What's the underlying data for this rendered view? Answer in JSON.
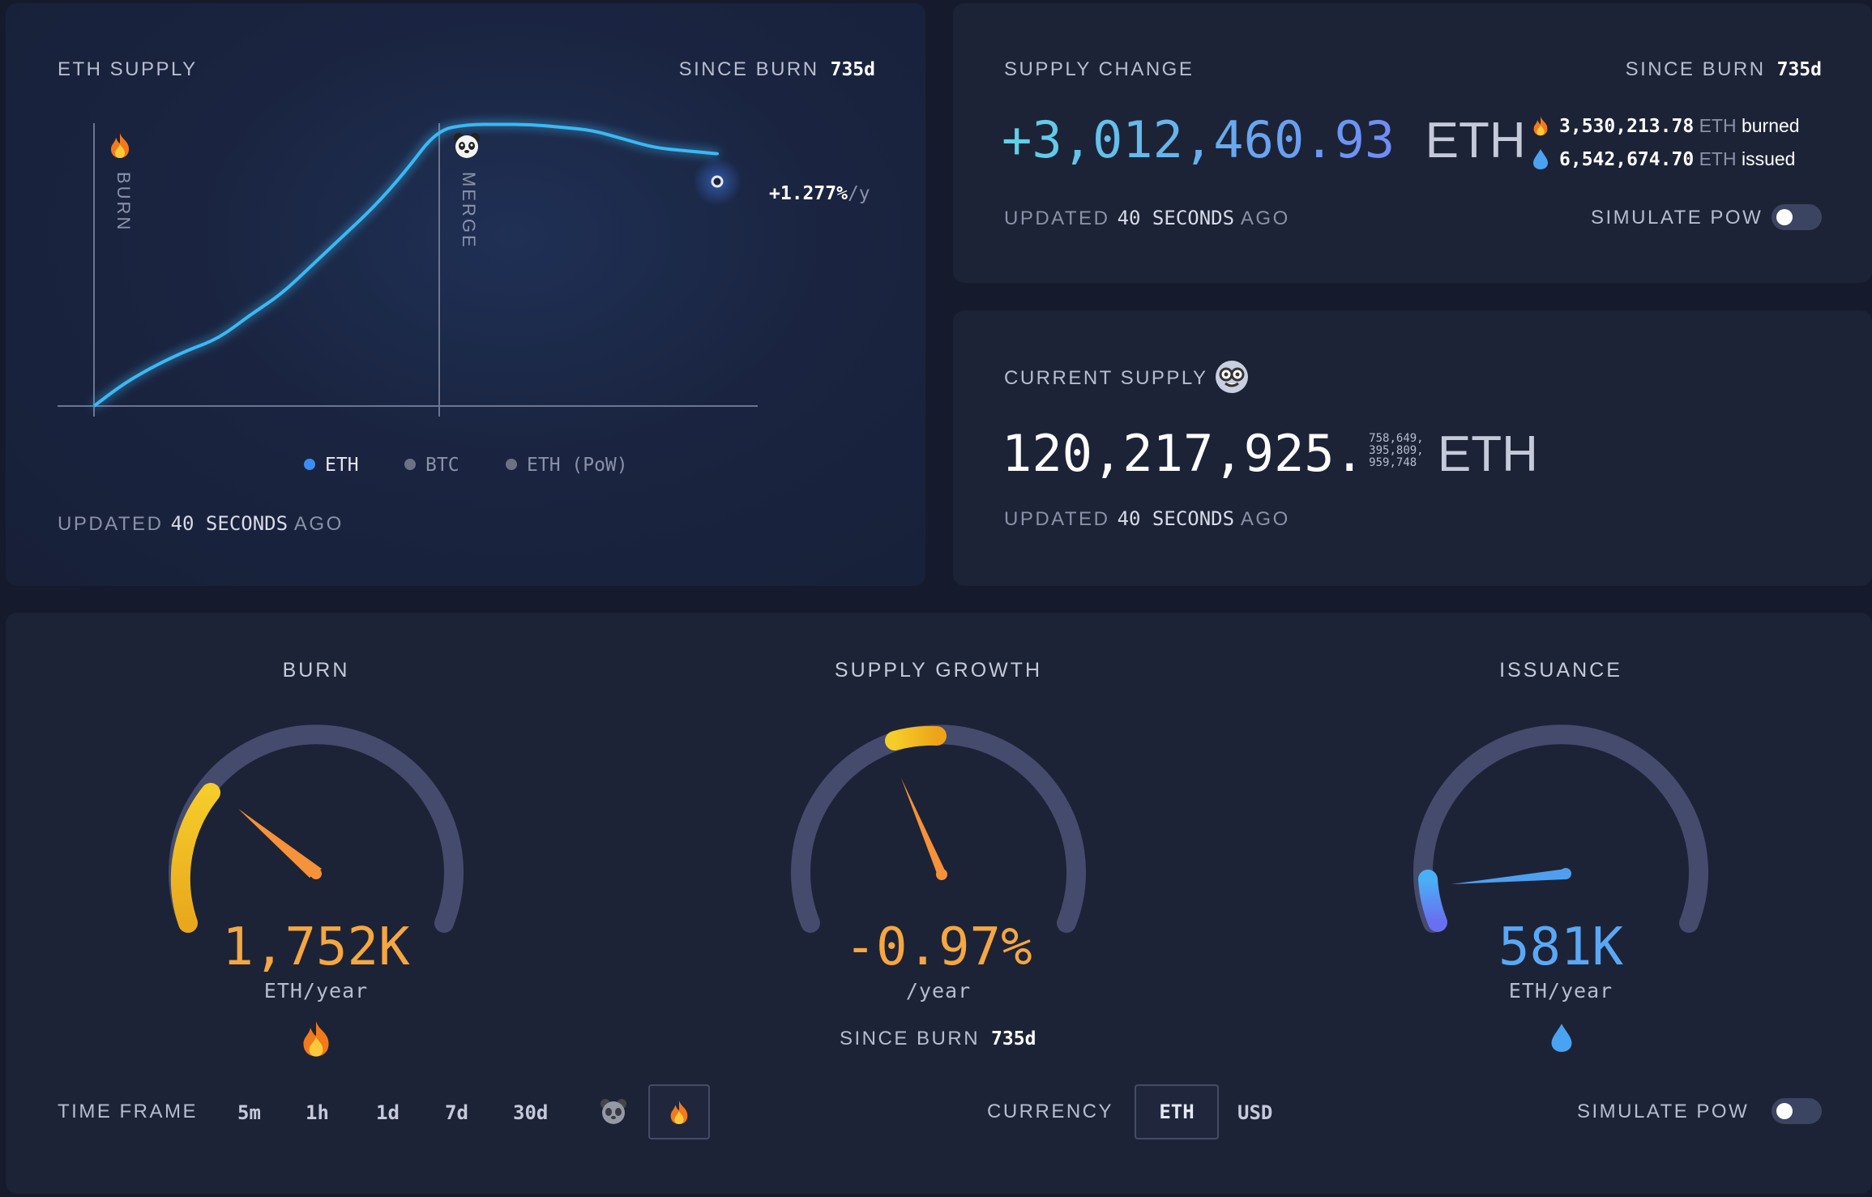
{
  "chart_card": {
    "title": "ETH SUPPLY",
    "since_label": "SINCE BURN",
    "since_value": "735d",
    "burn_marker": "BURN",
    "merge_marker": "MERGE",
    "annotation": "+1.277%",
    "annotation_unit": "/y",
    "legend": [
      "ETH",
      "BTC",
      "ETH (PoW)"
    ],
    "updated_prefix": "UPDATED",
    "updated_value": "40 SECONDS",
    "updated_suffix": "AGO",
    "burn_icon": "fire-emoji",
    "merge_icon": "panda-emoji",
    "line_color": "#3ab8f5"
  },
  "chart_data": {
    "type": "line",
    "title": "ETH SUPPLY",
    "xlabel": "SINCE BURN 735d",
    "ylabel": "",
    "series": [
      {
        "name": "ETH",
        "x": [
          0,
          5,
          10,
          15,
          20,
          25,
          30,
          35,
          40,
          45,
          50,
          55,
          60,
          65,
          70,
          75,
          80,
          85,
          90,
          95,
          100
        ],
        "y": [
          0,
          8,
          14,
          19,
          23,
          31,
          38,
          48,
          58,
          68,
          80,
          94,
          96,
          96,
          96,
          95,
          94,
          91,
          88,
          87,
          86
        ]
      }
    ],
    "markers": [
      {
        "label": "BURN",
        "x": 0
      },
      {
        "label": "MERGE",
        "x": 55
      }
    ],
    "grid": false
  },
  "supply_change": {
    "title": "SUPPLY CHANGE",
    "since_label": "SINCE BURN",
    "since_value": "735d",
    "value": "+3,012,460.93",
    "unit": "ETH",
    "burned_value": "3,530,213.78",
    "burned_unit": "ETH",
    "burned_label": "burned",
    "issued_value": "6,542,674.70",
    "issued_unit": "ETH",
    "issued_label": "issued",
    "updated_prefix": "UPDATED",
    "updated_value": "40 SECONDS",
    "updated_suffix": "AGO",
    "simulate_label": "SIMULATE PoW"
  },
  "current_supply": {
    "title": "CURRENT SUPPLY",
    "value_main": "120,217,925.",
    "value_fraction_1": "758,649,",
    "value_fraction_2": "395,809,",
    "value_fraction_3": "959,748",
    "unit": "ETH",
    "updated_prefix": "UPDATED",
    "updated_value": "40 SECONDS",
    "updated_suffix": "AGO"
  },
  "gauges": {
    "burn": {
      "title": "BURN",
      "value": "1,752K",
      "unit": "ETH/year",
      "color": "#f5a742"
    },
    "growth": {
      "title": "SUPPLY GROWTH",
      "value": "-0.97%",
      "unit": "/year",
      "color": "#f5a742",
      "since_label": "SINCE BURN",
      "since_value": "735d"
    },
    "issuance": {
      "title": "ISSUANCE",
      "value": "581K",
      "unit": "ETH/year",
      "color": "#5aa8f5"
    }
  },
  "controls": {
    "timeframe_label": "TIME FRAME",
    "timeframes": [
      "5m",
      "1h",
      "1d",
      "7d",
      "30d"
    ],
    "currency_label": "CURRENCY",
    "currency_eth": "ETH",
    "currency_usd": "USD",
    "simulate_label": "SIMULATE PoW"
  }
}
